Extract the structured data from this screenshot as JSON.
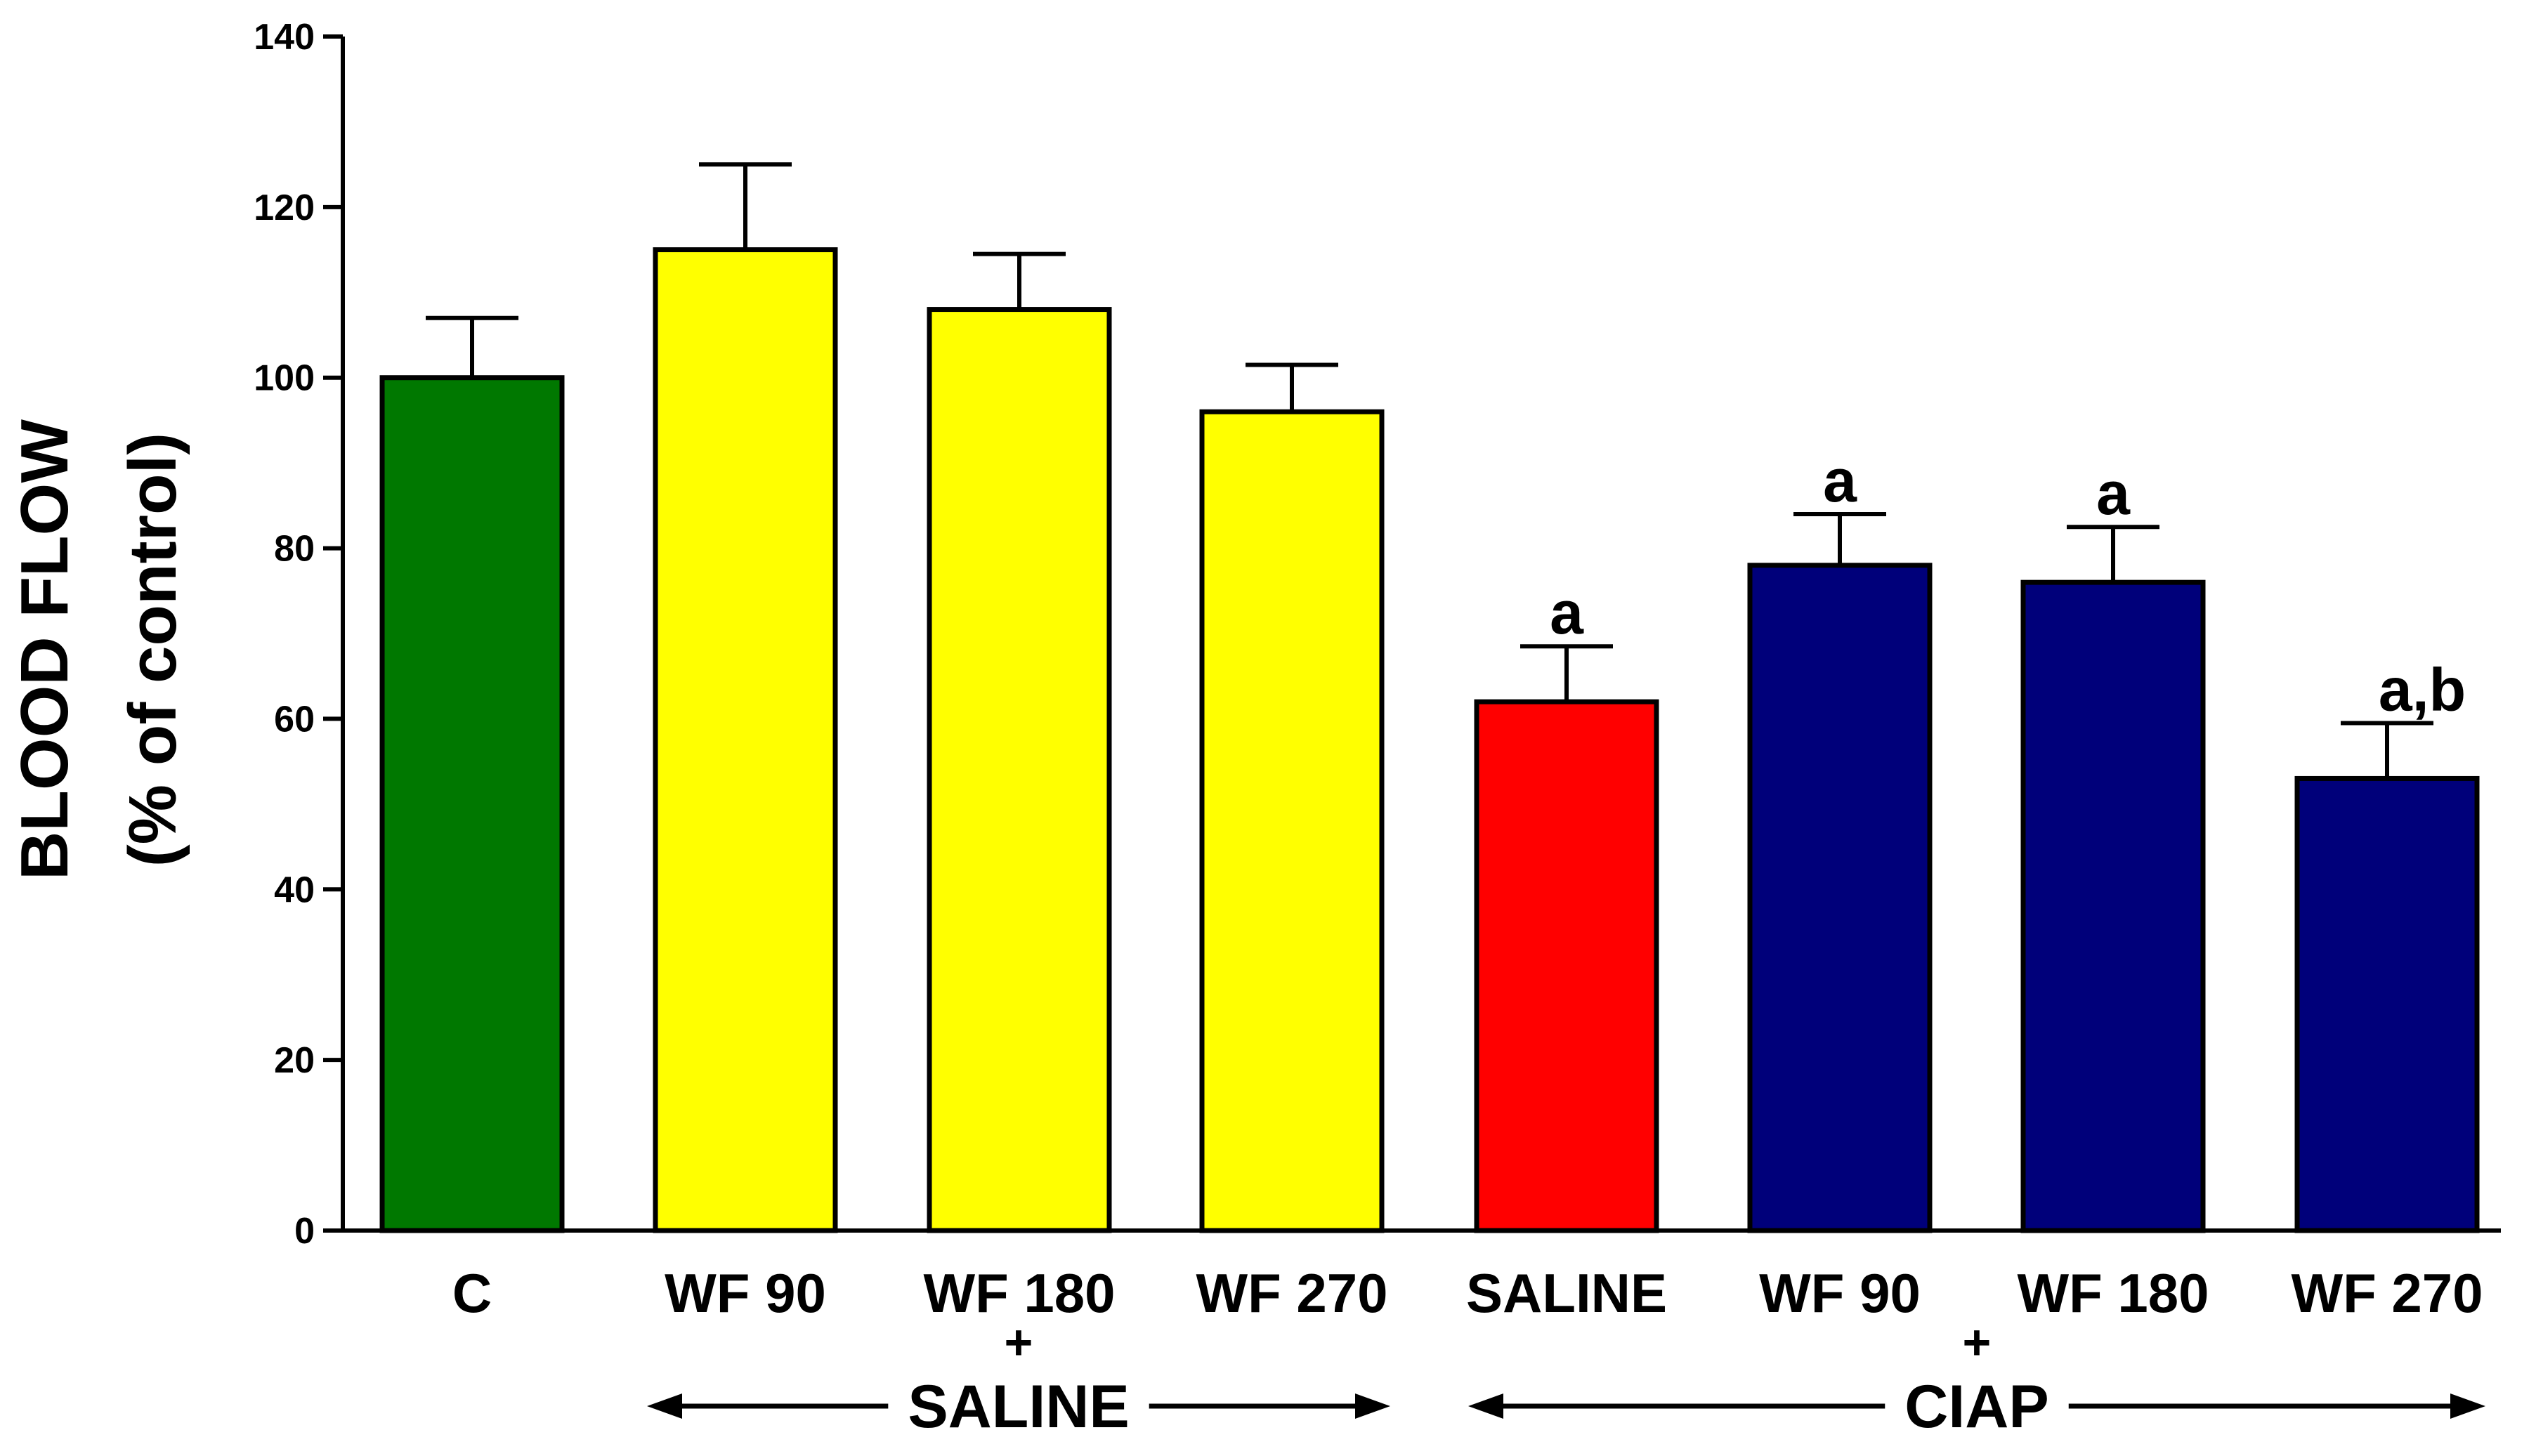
{
  "chart_data": {
    "type": "bar",
    "title": "",
    "xlabel": "",
    "ylabel": "BLOOD FLOW",
    "ylabel_sub": "(% of control)",
    "ylim": [
      0,
      140
    ],
    "yticks": [
      0,
      20,
      40,
      60,
      80,
      100,
      120,
      140
    ],
    "grid": false,
    "categories": [
      "C",
      "WF 90",
      "WF 180",
      "WF 270",
      "SALINE",
      "WF 90",
      "WF 180",
      "WF 270"
    ],
    "values": [
      100,
      115,
      108,
      96,
      62,
      78,
      76,
      53
    ],
    "errors": [
      7,
      10,
      6.5,
      5.5,
      6.5,
      6,
      6.5,
      6.5
    ],
    "colors": [
      "#007800",
      "#ffff00",
      "#ffff00",
      "#ffff00",
      "#ff0000",
      "#00007a",
      "#00007a",
      "#00007a"
    ],
    "annotations": [
      "",
      "",
      "",
      "",
      "a",
      "a",
      "a",
      "a,b"
    ],
    "groups": [
      {
        "plus": "+",
        "label": "SALINE",
        "start_index": 1,
        "end_index": 3
      },
      {
        "plus": "+",
        "label": "CIAP",
        "start_index": 4,
        "end_index": 7
      }
    ]
  }
}
